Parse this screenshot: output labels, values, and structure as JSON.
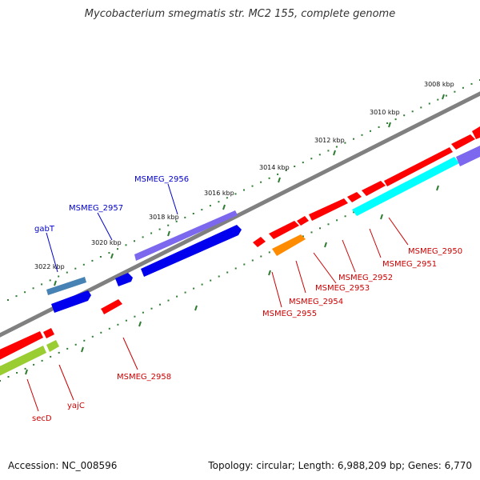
{
  "header": {
    "title": "Mycobacterium smegmatis str. MC2 155, complete genome"
  },
  "footer": {
    "accession_label": "Accession:",
    "accession": "NC_008596",
    "topology_text": "Topology: circular; Length: 6,988,209 bp; Genes: 6,770"
  },
  "scale": {
    "labels": [
      "3008 kbp",
      "3010 kbp",
      "3012 kbp",
      "3014 kbp",
      "3016 kbp",
      "3018 kbp",
      "3020 kbp",
      "3022 kbp"
    ]
  },
  "colors": {
    "backbone": "#808080",
    "tick": "#2e7d32",
    "forward_label": "#0000cc",
    "reverse_label": "#cc0000",
    "red": "#ff0000",
    "blue": "#0000ee",
    "slate_blue": "#7b68ee",
    "steel_blue": "#4682b4",
    "cyan": "#00ffff",
    "orange": "#ff8c00",
    "lime": "#9acd32"
  },
  "genes": {
    "forward": [
      "MSMEG_2956",
      "MSMEG_2957",
      "gabT"
    ],
    "reverse": [
      "MSMEG_2950",
      "MSMEG_2951",
      "MSMEG_2952",
      "MSMEG_2953",
      "MSMEG_2954",
      "MSMEG_2955",
      "MSMEG_2958",
      "yajC",
      "secD"
    ]
  }
}
